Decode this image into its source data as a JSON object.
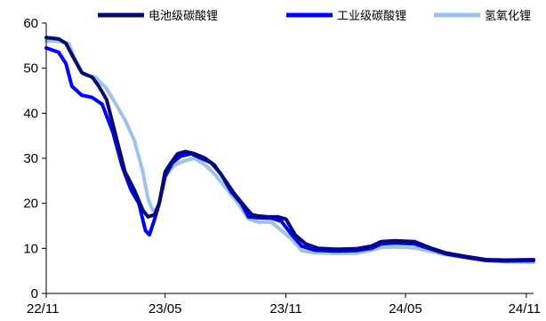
{
  "chart_data": {
    "type": "line",
    "title": "",
    "xlabel": "",
    "ylabel": "",
    "ylim": [
      0,
      60
    ],
    "yticks": [
      0,
      10,
      20,
      30,
      40,
      50,
      60
    ],
    "xlim": [
      "2022-11-01",
      "2024-11-12"
    ],
    "xtick_labels": [
      "22/11",
      "23/05",
      "23/11",
      "24/05",
      "24/11"
    ],
    "xtick_dates": [
      "2022-11-01",
      "2023-05-01",
      "2023-11-01",
      "2024-05-01",
      "2024-11-01"
    ],
    "grid": false,
    "legend_position": "top",
    "series": [
      {
        "name": "电池级碳酸锂",
        "color": "#0a0a6e",
        "points": [
          [
            "2022-11-01",
            56.8
          ],
          [
            "2022-11-20",
            56.5
          ],
          [
            "2022-12-01",
            55.5
          ],
          [
            "2022-12-10",
            53.0
          ],
          [
            "2022-12-25",
            49.0
          ],
          [
            "2023-01-10",
            48.0
          ],
          [
            "2023-01-20",
            46.0
          ],
          [
            "2023-02-01",
            43.0
          ],
          [
            "2023-02-15",
            35.0
          ],
          [
            "2023-03-01",
            27.0
          ],
          [
            "2023-03-15",
            23.0
          ],
          [
            "2023-03-28",
            18.5
          ],
          [
            "2023-04-05",
            17.0
          ],
          [
            "2023-04-15",
            17.5
          ],
          [
            "2023-04-22",
            20.0
          ],
          [
            "2023-05-01",
            27.0
          ],
          [
            "2023-05-10",
            29.0
          ],
          [
            "2023-05-20",
            31.0
          ],
          [
            "2023-06-01",
            31.5
          ],
          [
            "2023-06-15",
            31.0
          ],
          [
            "2023-07-01",
            30.0
          ],
          [
            "2023-07-15",
            28.5
          ],
          [
            "2023-08-01",
            25.0
          ],
          [
            "2023-08-15",
            22.0
          ],
          [
            "2023-09-01",
            19.0
          ],
          [
            "2023-09-10",
            17.5
          ],
          [
            "2023-09-20",
            17.2
          ],
          [
            "2023-10-05",
            17.0
          ],
          [
            "2023-10-20",
            17.0
          ],
          [
            "2023-11-01",
            16.5
          ],
          [
            "2023-11-15",
            13.0
          ],
          [
            "2023-12-01",
            11.0
          ],
          [
            "2023-12-20",
            10.0
          ],
          [
            "2024-01-15",
            9.8
          ],
          [
            "2024-02-15",
            9.9
          ],
          [
            "2024-03-10",
            10.5
          ],
          [
            "2024-03-25",
            11.5
          ],
          [
            "2024-04-15",
            11.7
          ],
          [
            "2024-05-15",
            11.5
          ],
          [
            "2024-06-10",
            10.0
          ],
          [
            "2024-07-01",
            9.0
          ],
          [
            "2024-08-01",
            8.2
          ],
          [
            "2024-09-01",
            7.5
          ],
          [
            "2024-10-01",
            7.4
          ],
          [
            "2024-11-12",
            7.5
          ]
        ]
      },
      {
        "name": "工业级碳酸锂",
        "color": "#0000ff",
        "points": [
          [
            "2022-11-01",
            54.5
          ],
          [
            "2022-11-20",
            53.5
          ],
          [
            "2022-12-01",
            51.0
          ],
          [
            "2022-12-10",
            46.0
          ],
          [
            "2022-12-25",
            44.0
          ],
          [
            "2023-01-10",
            43.5
          ],
          [
            "2023-01-25",
            42.0
          ],
          [
            "2023-02-10",
            36.0
          ],
          [
            "2023-02-25",
            28.0
          ],
          [
            "2023-03-10",
            23.0
          ],
          [
            "2023-03-22",
            20.0
          ],
          [
            "2023-04-01",
            14.0
          ],
          [
            "2023-04-07",
            13.0
          ],
          [
            "2023-04-14",
            16.0
          ],
          [
            "2023-04-22",
            20.0
          ],
          [
            "2023-05-01",
            26.0
          ],
          [
            "2023-05-12",
            29.0
          ],
          [
            "2023-05-25",
            30.5
          ],
          [
            "2023-06-10",
            31.0
          ],
          [
            "2023-06-25",
            30.0
          ],
          [
            "2023-07-10",
            29.0
          ],
          [
            "2023-07-25",
            26.5
          ],
          [
            "2023-08-10",
            22.5
          ],
          [
            "2023-08-25",
            20.0
          ],
          [
            "2023-09-05",
            17.0
          ],
          [
            "2023-09-20",
            16.8
          ],
          [
            "2023-10-10",
            16.7
          ],
          [
            "2023-10-25",
            16.0
          ],
          [
            "2023-11-10",
            13.0
          ],
          [
            "2023-11-25",
            10.5
          ],
          [
            "2023-12-15",
            9.6
          ],
          [
            "2024-01-15",
            9.4
          ],
          [
            "2024-02-15",
            9.5
          ],
          [
            "2024-03-10",
            10.0
          ],
          [
            "2024-03-25",
            11.0
          ],
          [
            "2024-04-15",
            11.2
          ],
          [
            "2024-05-15",
            11.0
          ],
          [
            "2024-06-10",
            9.8
          ],
          [
            "2024-07-01",
            8.8
          ],
          [
            "2024-08-01",
            8.0
          ],
          [
            "2024-09-01",
            7.3
          ],
          [
            "2024-10-01",
            7.2
          ],
          [
            "2024-11-12",
            7.3
          ]
        ]
      },
      {
        "name": "氢氧化锂",
        "color": "#9dc3ea",
        "points": [
          [
            "2022-11-01",
            56.0
          ],
          [
            "2022-11-20",
            56.0
          ],
          [
            "2022-12-05",
            55.5
          ],
          [
            "2022-12-15",
            52.0
          ],
          [
            "2022-12-28",
            48.5
          ],
          [
            "2023-01-15",
            48.0
          ],
          [
            "2023-02-01",
            45.5
          ],
          [
            "2023-02-15",
            42.0
          ],
          [
            "2023-03-01",
            38.5
          ],
          [
            "2023-03-15",
            34.0
          ],
          [
            "2023-03-28",
            27.0
          ],
          [
            "2023-04-05",
            21.0
          ],
          [
            "2023-04-12",
            18.5
          ],
          [
            "2023-04-20",
            18.5
          ],
          [
            "2023-05-01",
            26.0
          ],
          [
            "2023-05-15",
            28.5
          ],
          [
            "2023-06-01",
            29.5
          ],
          [
            "2023-06-15",
            30.0
          ],
          [
            "2023-07-01",
            28.5
          ],
          [
            "2023-07-15",
            26.5
          ],
          [
            "2023-08-01",
            23.5
          ],
          [
            "2023-08-20",
            20.0
          ],
          [
            "2023-09-05",
            16.5
          ],
          [
            "2023-09-20",
            15.8
          ],
          [
            "2023-10-10",
            15.8
          ],
          [
            "2023-10-25",
            14.0
          ],
          [
            "2023-11-10",
            12.0
          ],
          [
            "2023-11-25",
            9.5
          ],
          [
            "2023-12-15",
            9.0
          ],
          [
            "2024-01-15",
            8.9
          ],
          [
            "2024-02-15",
            8.9
          ],
          [
            "2024-03-10",
            9.6
          ],
          [
            "2024-03-25",
            10.2
          ],
          [
            "2024-04-15",
            10.3
          ],
          [
            "2024-05-15",
            10.1
          ],
          [
            "2024-06-10",
            9.3
          ],
          [
            "2024-07-01",
            8.6
          ],
          [
            "2024-08-01",
            8.0
          ],
          [
            "2024-09-01",
            7.4
          ],
          [
            "2024-10-01",
            7.0
          ],
          [
            "2024-11-12",
            6.9
          ]
        ]
      }
    ]
  }
}
